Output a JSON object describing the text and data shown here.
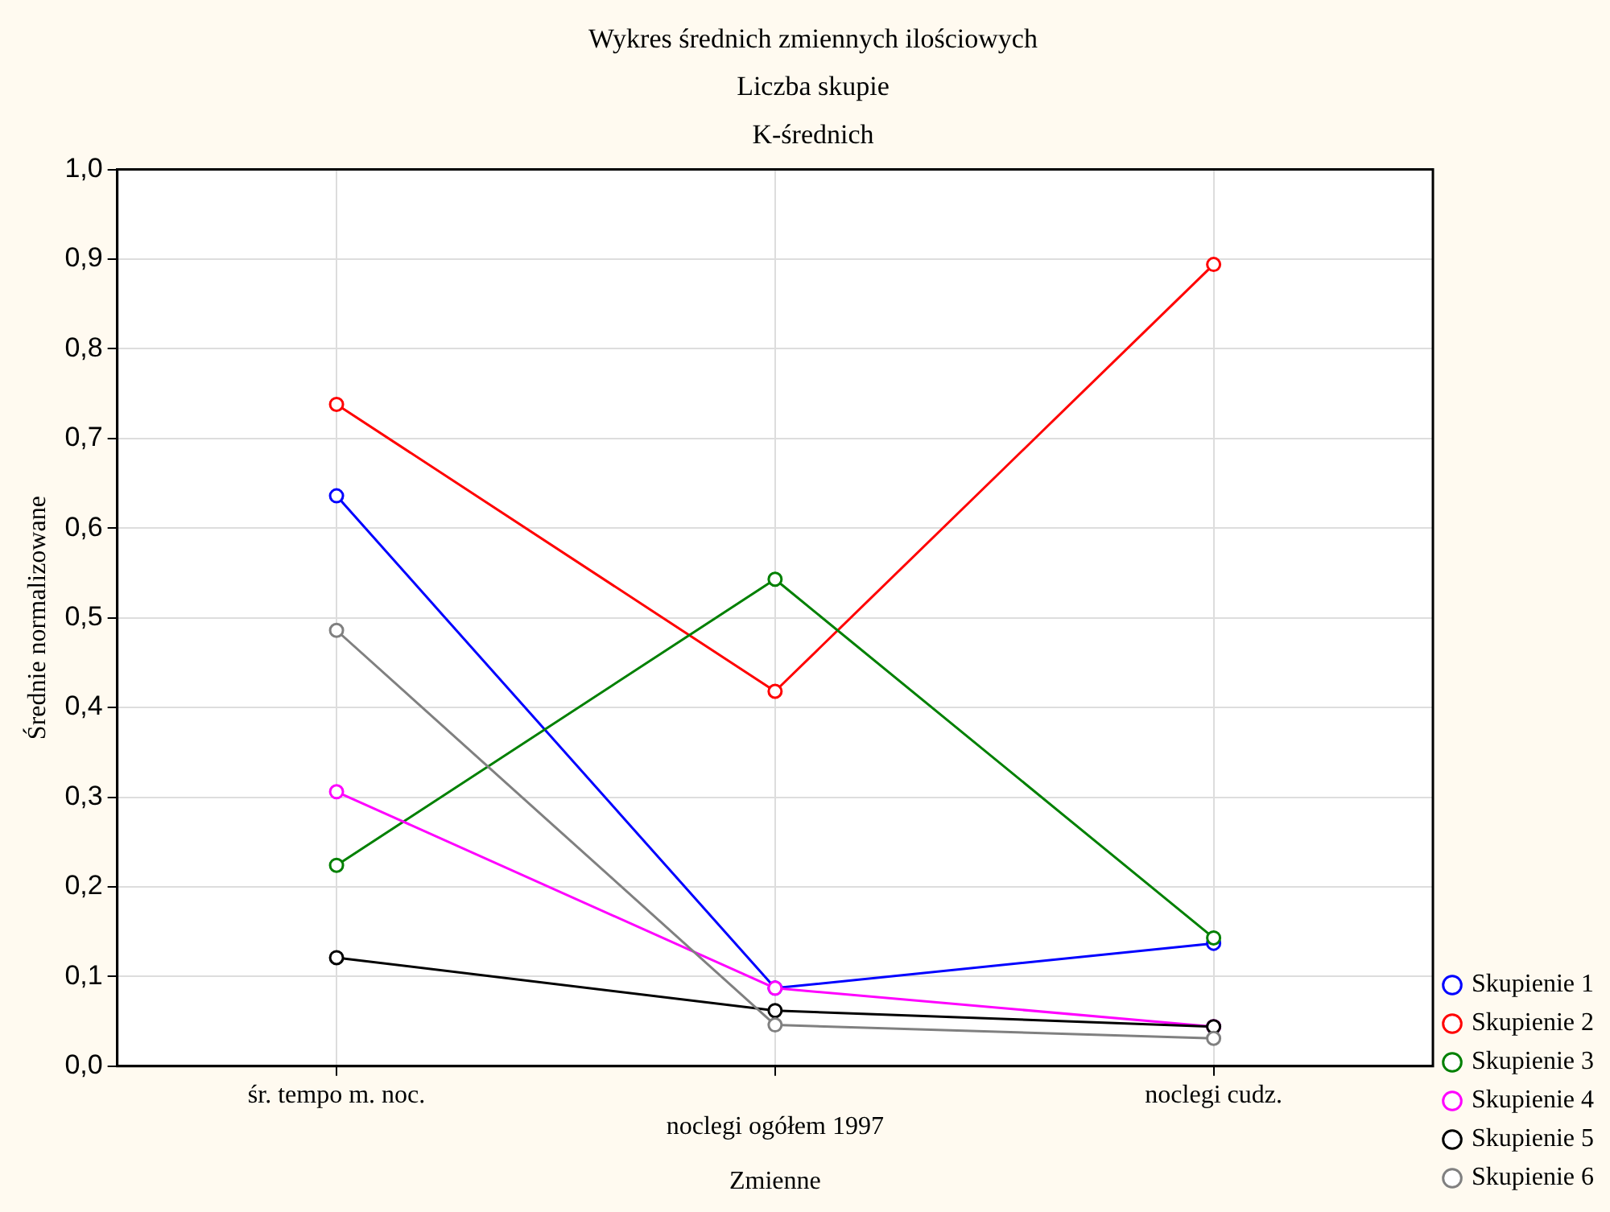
{
  "chart_data": {
    "type": "line",
    "title": "Wykres średnich zmiennych ilościowych",
    "subtitle": "Liczba skupie\nK-średnich",
    "xlabel": "Zmienne",
    "ylabel": "Średnie normalizowane",
    "categories": [
      "śr. tempo m. noc.",
      "noclegi ogółem 1997",
      "noclegi cudz."
    ],
    "series": [
      {
        "name": "Skupienie 1",
        "color": "#0000ff",
        "values": [
          0.636,
          0.087,
          0.137
        ]
      },
      {
        "name": "Skupienie 2",
        "color": "#ff0000",
        "values": [
          0.738,
          0.418,
          0.894
        ]
      },
      {
        "name": "Skupienie 3",
        "color": "#008000",
        "values": [
          0.224,
          0.543,
          0.143
        ]
      },
      {
        "name": "Skupienie 4",
        "color": "#ff00ff",
        "values": [
          0.306,
          0.087,
          0.044
        ]
      },
      {
        "name": "Skupienie 5",
        "color": "#000000",
        "values": [
          0.121,
          0.062,
          0.044
        ]
      },
      {
        "name": "Skupienie 6",
        "color": "#808080",
        "values": [
          0.486,
          0.046,
          0.031
        ]
      }
    ],
    "ylim": [
      0,
      1
    ],
    "yticks": [
      {
        "value": 0,
        "label": "0,0"
      },
      {
        "value": 0.1,
        "label": "0,1"
      },
      {
        "value": 0.2,
        "label": "0,2"
      },
      {
        "value": 0.3,
        "label": "0,3"
      },
      {
        "value": 0.4,
        "label": "0,4"
      },
      {
        "value": 0.5,
        "label": "0,5"
      },
      {
        "value": 0.6,
        "label": "0,6"
      },
      {
        "value": 0.7,
        "label": "0,7"
      },
      {
        "value": 0.8,
        "label": "0,8"
      },
      {
        "value": 0.9,
        "label": "0,9"
      },
      {
        "value": 1,
        "label": "1,0"
      }
    ],
    "grid": true,
    "legend": "bottom right",
    "marker": "circle",
    "line_style": "solid"
  }
}
